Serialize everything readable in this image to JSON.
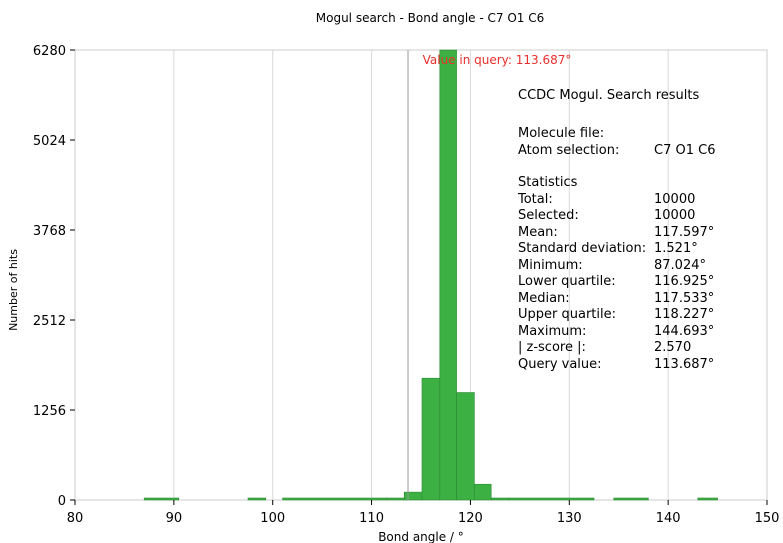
{
  "chart_data": {
    "type": "bar",
    "title": "Mogul search - Bond angle - C7 O1 C6",
    "xlabel": "Bond angle / °",
    "ylabel": "Number of hits",
    "xlim": [
      80,
      150
    ],
    "ylim": [
      0,
      6280
    ],
    "x_ticks": [
      "80",
      "90",
      "100",
      "110",
      "120",
      "130",
      "140",
      "150"
    ],
    "y_ticks": [
      "0",
      "1256",
      "2512",
      "3768",
      "5024",
      "6280"
    ],
    "grid": "vertical",
    "bar_color": "#3cb043",
    "bins": [
      {
        "start": 87.0,
        "end": 90.5,
        "count": 5
      },
      {
        "start": 97.5,
        "end": 99.3,
        "count": 5
      },
      {
        "start": 101.0,
        "end": 111.5,
        "count": 5
      },
      {
        "start": 111.5,
        "end": 113.3,
        "count": 20
      },
      {
        "start": 113.3,
        "end": 115.1,
        "count": 110
      },
      {
        "start": 115.1,
        "end": 116.9,
        "count": 1700
      },
      {
        "start": 116.9,
        "end": 118.6,
        "count": 6280
      },
      {
        "start": 118.6,
        "end": 120.4,
        "count": 1500
      },
      {
        "start": 120.4,
        "end": 122.1,
        "count": 220
      },
      {
        "start": 122.1,
        "end": 123.9,
        "count": 20
      },
      {
        "start": 123.9,
        "end": 132.5,
        "count": 5
      },
      {
        "start": 134.5,
        "end": 138.0,
        "count": 5
      },
      {
        "start": 143.0,
        "end": 145.0,
        "count": 5
      }
    ],
    "query": {
      "value": 113.687,
      "label": "Value in query: 113.687°",
      "color": "#e8302a"
    }
  },
  "info": {
    "header": "CCDC Mogul.  Search results",
    "molecule_file_label": "Molecule file:",
    "atom_selection_label": "Atom selection:",
    "atom_selection_value": "C7 O1 C6",
    "statistics_title": "Statistics",
    "stats": [
      {
        "label": "Total:",
        "value": "10000"
      },
      {
        "label": "Selected:",
        "value": "10000"
      },
      {
        "label": "Mean:",
        "value": "117.597°"
      },
      {
        "label": "Standard deviation:",
        "value": "1.521°"
      },
      {
        "label": "Minimum:",
        "value": "87.024°"
      },
      {
        "label": "Lower quartile:",
        "value": "116.925°"
      },
      {
        "label": "Median:",
        "value": "117.533°"
      },
      {
        "label": "Upper quartile:",
        "value": "118.227°"
      },
      {
        "label": "Maximum:",
        "value": "144.693°"
      },
      {
        "label": "| z-score |:",
        "value": "2.570"
      },
      {
        "label": "Query value:",
        "value": "113.687°"
      }
    ]
  }
}
